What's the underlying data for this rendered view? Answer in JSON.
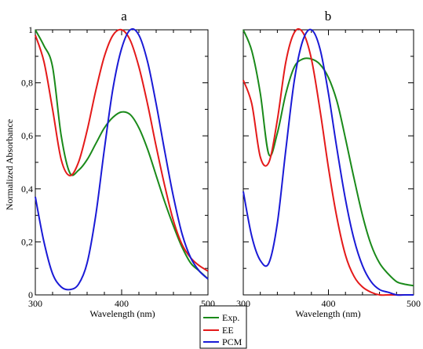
{
  "chart_data": [
    {
      "type": "line",
      "title": "a",
      "xlabel": "Wavelength (nm)",
      "ylabel": "Normalized Absorbance",
      "xlim": [
        300,
        500
      ],
      "ylim": [
        0,
        1
      ],
      "xticks": [
        300,
        400,
        500
      ],
      "yticks": [
        0,
        0.2,
        0.4,
        0.6,
        0.8,
        1
      ],
      "ytick_labels": [
        "0",
        "0,2",
        "0,4",
        "0,6",
        "0,8",
        "1"
      ],
      "grid": false,
      "series": [
        {
          "name": "Exp.",
          "color": "#1a8a1a",
          "x": [
            300,
            310,
            320,
            330,
            340,
            350,
            360,
            370,
            380,
            390,
            400,
            410,
            420,
            430,
            440,
            450,
            460,
            470,
            480,
            490,
            500
          ],
          "y": [
            1.0,
            0.94,
            0.86,
            0.6,
            0.46,
            0.47,
            0.51,
            0.57,
            0.63,
            0.67,
            0.69,
            0.68,
            0.63,
            0.55,
            0.45,
            0.35,
            0.26,
            0.18,
            0.12,
            0.09,
            0.06
          ]
        },
        {
          "name": "EE",
          "color": "#e41a1a",
          "x": [
            300,
            310,
            320,
            330,
            340,
            350,
            360,
            370,
            380,
            390,
            400,
            410,
            420,
            430,
            440,
            450,
            460,
            470,
            480,
            490,
            500
          ],
          "y": [
            0.98,
            0.88,
            0.7,
            0.51,
            0.45,
            0.5,
            0.62,
            0.77,
            0.9,
            0.98,
            1.0,
            0.96,
            0.86,
            0.72,
            0.56,
            0.41,
            0.28,
            0.19,
            0.14,
            0.11,
            0.09
          ]
        },
        {
          "name": "PCM",
          "color": "#1a1ad6",
          "x": [
            300,
            310,
            320,
            330,
            340,
            350,
            360,
            370,
            380,
            390,
            400,
            410,
            420,
            430,
            440,
            450,
            460,
            470,
            480,
            490,
            500
          ],
          "y": [
            0.37,
            0.2,
            0.08,
            0.03,
            0.02,
            0.04,
            0.12,
            0.3,
            0.55,
            0.78,
            0.93,
            1.0,
            0.98,
            0.88,
            0.72,
            0.54,
            0.37,
            0.23,
            0.14,
            0.09,
            0.06
          ]
        }
      ]
    },
    {
      "type": "line",
      "title": "b",
      "xlabel": "Wavelength (nm)",
      "ylabel": "",
      "xlim": [
        300,
        500
      ],
      "ylim": [
        0,
        1
      ],
      "xticks": [
        300,
        400,
        500
      ],
      "grid": false,
      "series": [
        {
          "name": "Exp.",
          "color": "#1a8a1a",
          "x": [
            300,
            310,
            320,
            330,
            340,
            350,
            360,
            370,
            380,
            390,
            400,
            410,
            420,
            430,
            440,
            450,
            460,
            470,
            480,
            490,
            500
          ],
          "y": [
            1.0,
            0.92,
            0.76,
            0.53,
            0.61,
            0.76,
            0.86,
            0.89,
            0.89,
            0.87,
            0.82,
            0.73,
            0.59,
            0.44,
            0.3,
            0.19,
            0.12,
            0.08,
            0.05,
            0.04,
            0.035
          ]
        },
        {
          "name": "EE",
          "color": "#e41a1a",
          "x": [
            300,
            310,
            320,
            330,
            340,
            350,
            360,
            370,
            380,
            390,
            400,
            410,
            420,
            430,
            440,
            450,
            460,
            470,
            480,
            490,
            500
          ],
          "y": [
            0.81,
            0.72,
            0.52,
            0.5,
            0.66,
            0.88,
            0.99,
            0.99,
            0.89,
            0.7,
            0.48,
            0.29,
            0.15,
            0.07,
            0.03,
            0.01,
            0.0,
            0.0,
            0.0,
            0.0,
            0.0
          ]
        },
        {
          "name": "PCM",
          "color": "#1a1ad6",
          "x": [
            300,
            310,
            320,
            330,
            340,
            350,
            360,
            370,
            380,
            390,
            400,
            410,
            420,
            430,
            440,
            450,
            460,
            470,
            480,
            490,
            500
          ],
          "y": [
            0.39,
            0.22,
            0.13,
            0.12,
            0.27,
            0.55,
            0.81,
            0.96,
            1.0,
            0.93,
            0.76,
            0.55,
            0.36,
            0.21,
            0.11,
            0.05,
            0.02,
            0.01,
            0.0,
            0.0,
            0.0
          ]
        }
      ]
    }
  ],
  "legend": {
    "placement": "bottom-center",
    "items": [
      {
        "label": "Exp.",
        "color": "#1a8a1a"
      },
      {
        "label": "EE",
        "color": "#e41a1a"
      },
      {
        "label": "PCM",
        "color": "#1a1ad6"
      }
    ]
  }
}
